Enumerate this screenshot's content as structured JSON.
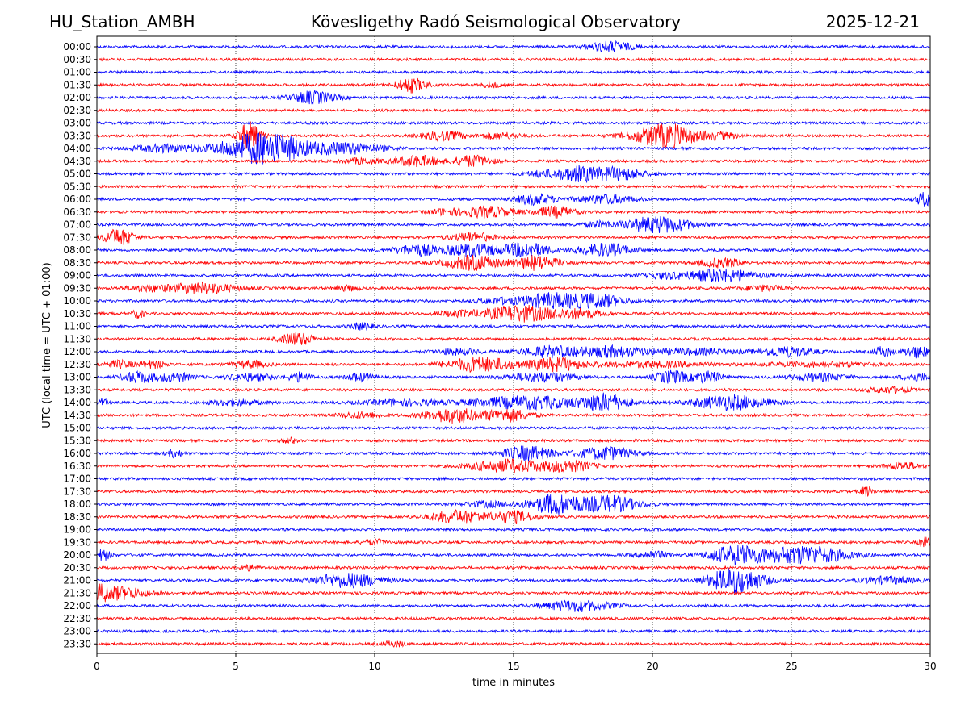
{
  "header": {
    "station": "HU_Station_AMBH",
    "observatory": "Kövesligethy Radó Seismological Observatory",
    "date": "2025-12-21"
  },
  "chart_data": {
    "type": "line",
    "title": "Kövesligethy Radó Seismological Observatory",
    "xlabel": "time in minutes",
    "ylabel": "UTC (local time = UTC + 01:00)",
    "xlim": [
      0,
      30
    ],
    "xticks": [
      "0",
      "5",
      "10",
      "15",
      "20",
      "25",
      "30"
    ],
    "grid": "vertical dotted at 5-minute ticks",
    "colors": {
      "even_rows": "#0000ff",
      "odd_rows": "#ff0000",
      "frame": "#000000"
    },
    "traces": [
      {
        "label": "00:00",
        "events": [
          [
            18.5,
            0.8,
            0.55
          ]
        ]
      },
      {
        "label": "00:30",
        "events": []
      },
      {
        "label": "01:00",
        "events": []
      },
      {
        "label": "01:30",
        "events": [
          [
            11.3,
            0.5,
            0.8
          ],
          [
            14.2,
            0.4,
            0.25
          ]
        ]
      },
      {
        "label": "02:00",
        "events": [
          [
            7.8,
            0.8,
            0.7
          ]
        ]
      },
      {
        "label": "02:30",
        "events": []
      },
      {
        "label": "03:00",
        "events": []
      },
      {
        "label": "03:30",
        "events": [
          [
            5.5,
            0.4,
            1.5
          ],
          [
            12.5,
            0.8,
            0.45
          ],
          [
            14.5,
            0.7,
            0.35
          ],
          [
            20.5,
            1.2,
            1.3
          ],
          [
            22.5,
            0.6,
            0.3
          ]
        ]
      },
      {
        "label": "04:00",
        "events": [
          [
            6.0,
            1.5,
            1.8
          ],
          [
            9.0,
            1.3,
            0.6
          ],
          [
            2.5,
            1.2,
            0.4
          ]
        ]
      },
      {
        "label": "04:30",
        "events": [
          [
            11.5,
            0.8,
            0.6
          ],
          [
            13.5,
            0.7,
            0.6
          ],
          [
            9.5,
            0.6,
            0.3
          ]
        ]
      },
      {
        "label": "05:00",
        "events": [
          [
            17.3,
            0.8,
            0.8
          ],
          [
            18.8,
            0.9,
            0.7
          ],
          [
            16.0,
            0.6,
            0.3
          ]
        ]
      },
      {
        "label": "05:30",
        "events": []
      },
      {
        "label": "06:00",
        "events": [
          [
            15.8,
            0.7,
            0.6
          ],
          [
            18.3,
            1.0,
            0.5
          ],
          [
            29.8,
            0.3,
            0.8
          ]
        ]
      },
      {
        "label": "06:30",
        "events": [
          [
            14.0,
            1.0,
            0.6
          ],
          [
            16.5,
            0.7,
            0.6
          ],
          [
            12.5,
            0.5,
            0.3
          ]
        ]
      },
      {
        "label": "07:00",
        "events": [
          [
            20.2,
            1.2,
            0.9
          ],
          [
            18.0,
            0.6,
            0.3
          ]
        ]
      },
      {
        "label": "07:30",
        "events": [
          [
            0.8,
            0.6,
            0.9
          ],
          [
            13.5,
            0.8,
            0.5
          ]
        ]
      },
      {
        "label": "08:00",
        "events": [
          [
            11.5,
            0.8,
            0.6
          ],
          [
            13.5,
            1.0,
            0.7
          ],
          [
            15.5,
            0.8,
            0.8
          ],
          [
            18.3,
            1.0,
            0.7
          ]
        ]
      },
      {
        "label": "08:30",
        "events": [
          [
            13.5,
            1.0,
            0.8
          ],
          [
            15.8,
            0.8,
            0.8
          ],
          [
            22.5,
            0.8,
            0.5
          ]
        ]
      },
      {
        "label": "09:00",
        "events": [
          [
            22.5,
            1.2,
            0.7
          ],
          [
            20.5,
            0.8,
            0.3
          ]
        ]
      },
      {
        "label": "09:30",
        "events": [
          [
            3.8,
            1.2,
            0.6
          ],
          [
            1.8,
            0.8,
            0.3
          ],
          [
            24.0,
            0.8,
            0.3
          ],
          [
            9.0,
            0.4,
            0.3
          ]
        ]
      },
      {
        "label": "10:00",
        "events": [
          [
            16.3,
            1.0,
            0.8
          ],
          [
            18.0,
            1.0,
            0.7
          ],
          [
            14.5,
            0.8,
            0.3
          ]
        ]
      },
      {
        "label": "10:30",
        "events": [
          [
            15.2,
            1.2,
            0.9
          ],
          [
            17.3,
            0.9,
            0.5
          ],
          [
            13.0,
            0.8,
            0.3
          ],
          [
            1.5,
            0.2,
            0.5
          ]
        ]
      },
      {
        "label": "11:00",
        "events": [
          [
            9.5,
            0.4,
            0.35
          ]
        ]
      },
      {
        "label": "11:30",
        "events": [
          [
            7.2,
            0.6,
            0.7
          ]
        ]
      },
      {
        "label": "12:00",
        "events": [
          [
            16.3,
            1.0,
            0.6
          ],
          [
            18.5,
            1.2,
            0.6
          ],
          [
            24.8,
            1.0,
            0.5
          ],
          [
            28.3,
            0.3,
            0.6
          ],
          [
            29.5,
            0.5,
            0.6
          ],
          [
            13.0,
            0.8,
            0.3
          ],
          [
            21.5,
            1.5,
            0.3
          ]
        ]
      },
      {
        "label": "12:30",
        "events": [
          [
            13.8,
            1.2,
            0.8
          ],
          [
            16.5,
            1.0,
            0.7
          ],
          [
            2.0,
            0.5,
            0.4
          ],
          [
            0.8,
            0.5,
            0.4
          ],
          [
            5.5,
            0.6,
            0.4
          ],
          [
            20.0,
            2.0,
            0.3
          ],
          [
            26.0,
            2.0,
            0.25
          ]
        ]
      },
      {
        "label": "13:00",
        "events": [
          [
            1.5,
            0.6,
            0.6
          ],
          [
            2.8,
            0.6,
            0.5
          ],
          [
            5.5,
            0.8,
            0.4
          ],
          [
            7.3,
            0.4,
            0.5
          ],
          [
            9.5,
            0.5,
            0.4
          ],
          [
            16.0,
            1.2,
            0.5
          ],
          [
            20.7,
            0.6,
            0.7
          ],
          [
            22.0,
            0.5,
            0.6
          ],
          [
            26.0,
            1.0,
            0.4
          ],
          [
            29.5,
            0.5,
            0.4
          ]
        ]
      },
      {
        "label": "13:30",
        "events": [
          [
            28.5,
            0.8,
            0.3
          ]
        ]
      },
      {
        "label": "14:00",
        "events": [
          [
            15.5,
            2.0,
            0.7
          ],
          [
            18.3,
            0.8,
            0.9
          ],
          [
            22.8,
            1.3,
            0.8
          ],
          [
            5.0,
            1.0,
            0.3
          ],
          [
            11.0,
            1.5,
            0.3
          ],
          [
            0.2,
            0.2,
            0.4
          ]
        ]
      },
      {
        "label": "14:30",
        "events": [
          [
            12.8,
            1.0,
            0.8
          ],
          [
            14.8,
            0.8,
            0.7
          ],
          [
            9.5,
            0.8,
            0.3
          ]
        ]
      },
      {
        "label": "15:00",
        "events": []
      },
      {
        "label": "15:30",
        "events": [
          [
            7.0,
            0.3,
            0.3
          ]
        ]
      },
      {
        "label": "16:00",
        "events": [
          [
            15.5,
            0.9,
            0.8
          ],
          [
            18.3,
            1.0,
            0.7
          ],
          [
            2.8,
            0.3,
            0.4
          ]
        ]
      },
      {
        "label": "16:30",
        "events": [
          [
            14.8,
            1.3,
            0.7
          ],
          [
            17.0,
            0.9,
            0.6
          ],
          [
            29.0,
            0.6,
            0.4
          ]
        ]
      },
      {
        "label": "17:00",
        "events": []
      },
      {
        "label": "17:30",
        "events": [
          [
            27.7,
            0.2,
            0.6
          ]
        ]
      },
      {
        "label": "18:00",
        "events": [
          [
            16.5,
            1.0,
            1.1
          ],
          [
            18.5,
            1.0,
            0.9
          ],
          [
            14.0,
            0.8,
            0.3
          ]
        ]
      },
      {
        "label": "18:30",
        "events": [
          [
            13.0,
            1.0,
            0.7
          ],
          [
            15.0,
            0.8,
            0.6
          ]
        ]
      },
      {
        "label": "19:00",
        "events": []
      },
      {
        "label": "19:30",
        "events": [
          [
            29.8,
            0.2,
            0.6
          ],
          [
            10.0,
            0.4,
            0.3
          ]
        ]
      },
      {
        "label": "20:00",
        "events": [
          [
            23.0,
            1.0,
            1.0
          ],
          [
            25.5,
            1.5,
            1.0
          ],
          [
            0.2,
            0.3,
            0.6
          ],
          [
            20.0,
            0.6,
            0.4
          ]
        ]
      },
      {
        "label": "20:30",
        "events": [
          [
            5.5,
            0.3,
            0.3
          ]
        ]
      },
      {
        "label": "21:00",
        "events": [
          [
            9.0,
            1.2,
            0.8
          ],
          [
            23.0,
            1.0,
            1.4
          ],
          [
            28.5,
            1.0,
            0.4
          ]
        ]
      },
      {
        "label": "21:30",
        "events": [
          [
            0.8,
            1.0,
            0.7
          ],
          [
            0.2,
            0.2,
            0.6
          ]
        ]
      },
      {
        "label": "22:00",
        "events": [
          [
            17.3,
            1.2,
            0.6
          ]
        ]
      },
      {
        "label": "22:30",
        "events": []
      },
      {
        "label": "23:00",
        "events": []
      },
      {
        "label": "23:30",
        "events": [
          [
            10.7,
            0.4,
            0.3
          ]
        ]
      }
    ]
  }
}
